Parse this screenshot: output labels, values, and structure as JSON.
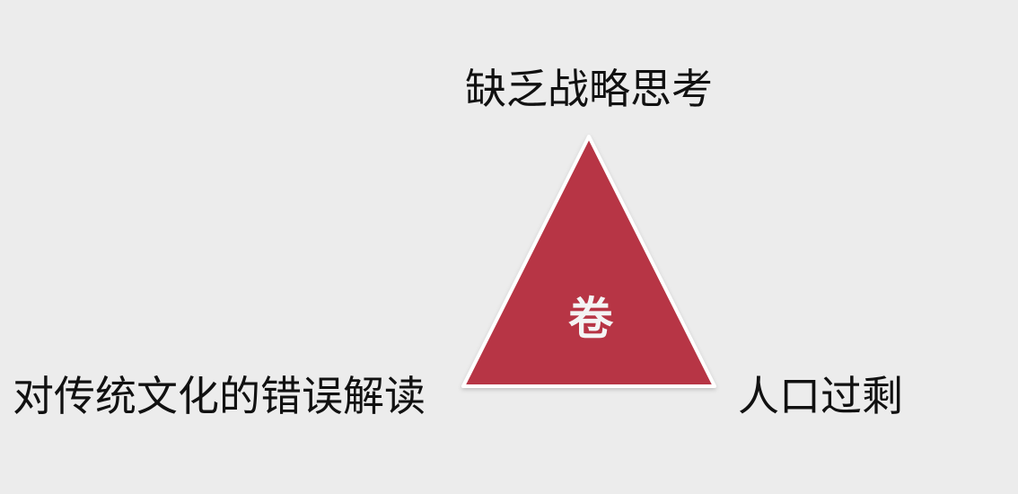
{
  "diagram": {
    "center_label": "卷",
    "top_label": "缺乏战略思考",
    "left_label": "对传统文化的错误解读",
    "right_label": "人口过剩"
  },
  "colors": {
    "background": "#ececec",
    "triangle_fill": "#b73645",
    "center_text": "#f4f4f4",
    "label_text": "#111111"
  }
}
